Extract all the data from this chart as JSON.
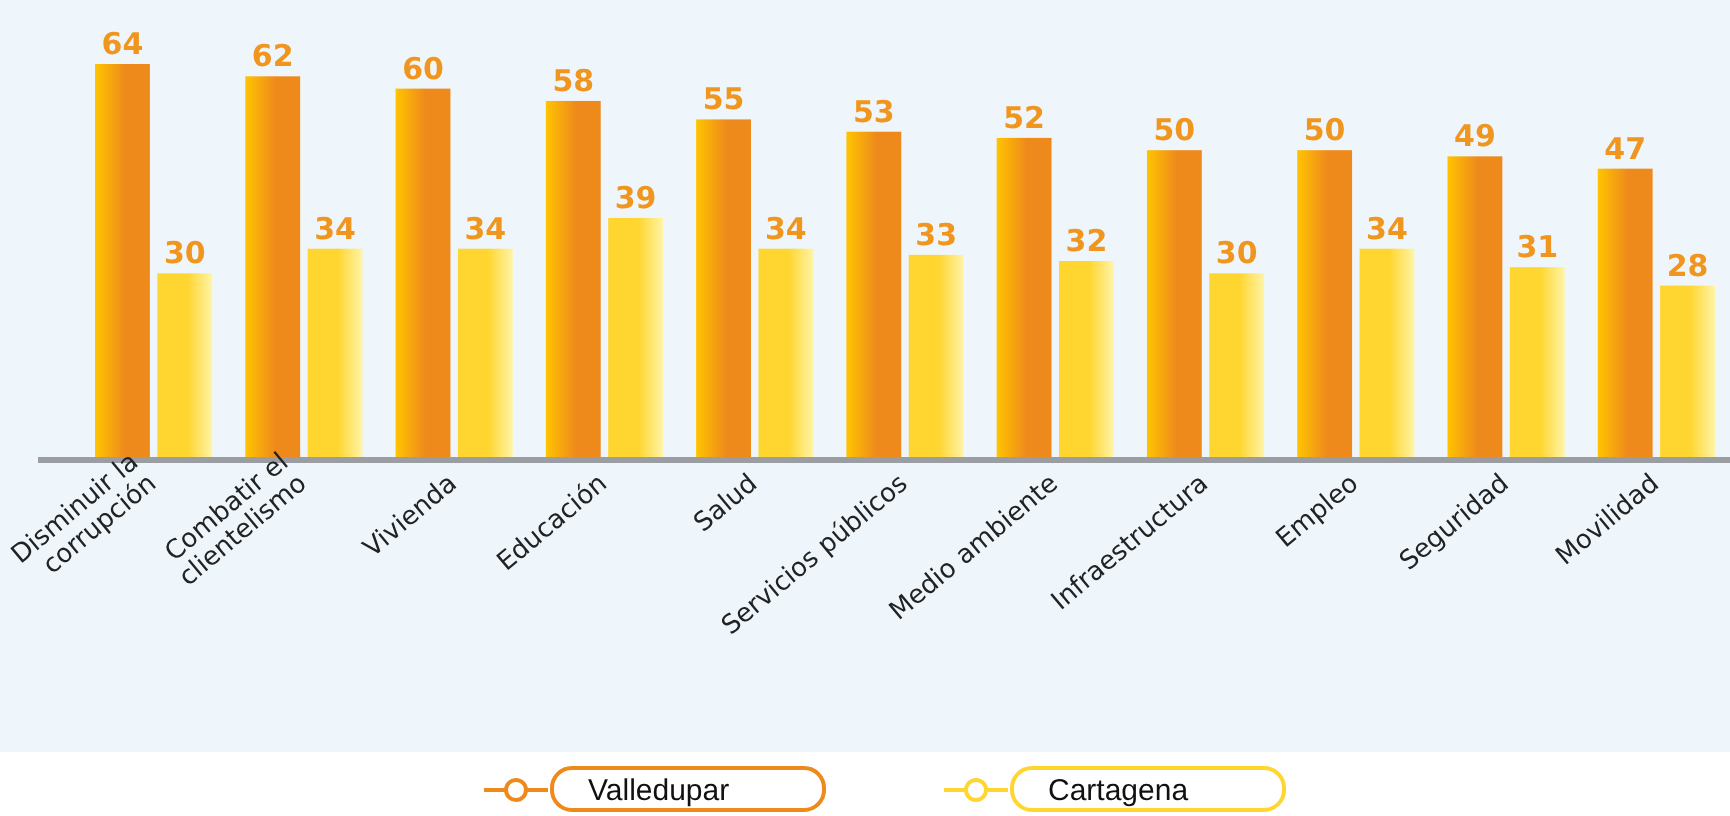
{
  "chart_data": {
    "type": "bar",
    "categories": [
      "Disminuir la\ncorrupción",
      "Combatir el\nclientelismo",
      "Vivienda",
      "Educación",
      "Salud",
      "Servicios públicos",
      "Medio ambiente",
      "Infraestructura",
      "Empleo",
      "Seguridad",
      "Movilidad"
    ],
    "series": [
      {
        "name": "Valledupar",
        "color": "#ee8a1c",
        "values": [
          64,
          62,
          60,
          58,
          55,
          53,
          52,
          50,
          50,
          49,
          47
        ]
      },
      {
        "name": "Cartagena",
        "color": "#ffd630",
        "values": [
          30,
          34,
          34,
          39,
          34,
          33,
          32,
          30,
          34,
          31,
          28
        ]
      }
    ],
    "data_labels": true,
    "legend": "bottom"
  }
}
